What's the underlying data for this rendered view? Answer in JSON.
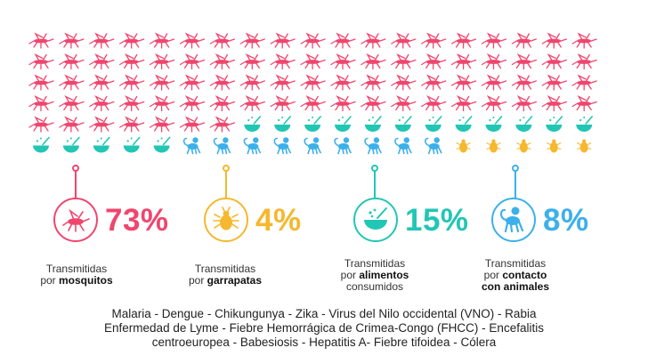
{
  "chart_data": {
    "type": "pictogram",
    "categories": [
      {
        "key": "mosquitos",
        "value": 73,
        "value_label": "73%",
        "label_line1": "Transmitidas",
        "label_prefix": "por ",
        "label_bold": "mosquitos",
        "label_line3": "",
        "color": "#f0466e",
        "icon": "mosquito-icon"
      },
      {
        "key": "garrapatas",
        "value": 4,
        "value_label": "4%",
        "label_line1": "Transmitidas",
        "label_prefix": "por ",
        "label_bold": "garrapatas",
        "label_line3": "",
        "color": "#f5b82e",
        "icon": "tick-icon"
      },
      {
        "key": "alimentos",
        "value": 15,
        "value_label": "15%",
        "label_line1": "Transmitidas",
        "label_prefix": "por ",
        "label_bold": "alimentos",
        "label_line3": "consumidos",
        "color": "#22c6b4",
        "icon": "food-bowl-icon"
      },
      {
        "key": "animales",
        "value": 8,
        "value_label": "8%",
        "label_line1": "Transmitidas",
        "label_prefix": "por ",
        "label_bold": "contacto",
        "label_line3": "con animales",
        "color": "#3cb0ea",
        "icon": "monkey-icon"
      }
    ],
    "grid_columns": 19,
    "icon_sequence": [
      "mosquitos",
      "alimentos",
      "animales",
      "garrapatas"
    ]
  },
  "diseases": {
    "line1": "Malaria - Dengue - Chikungunya - Zika - Virus del Nilo occidental (VNO) - Rabia",
    "line2": "Enfermedad de Lyme - Fiebre Hemorrágica de Crimea-Congo (FHCC) - Encefalitis",
    "line3": "centroeuropea - Babesiosis - Hepatitis A- Fiebre tifoidea - Cólera"
  }
}
